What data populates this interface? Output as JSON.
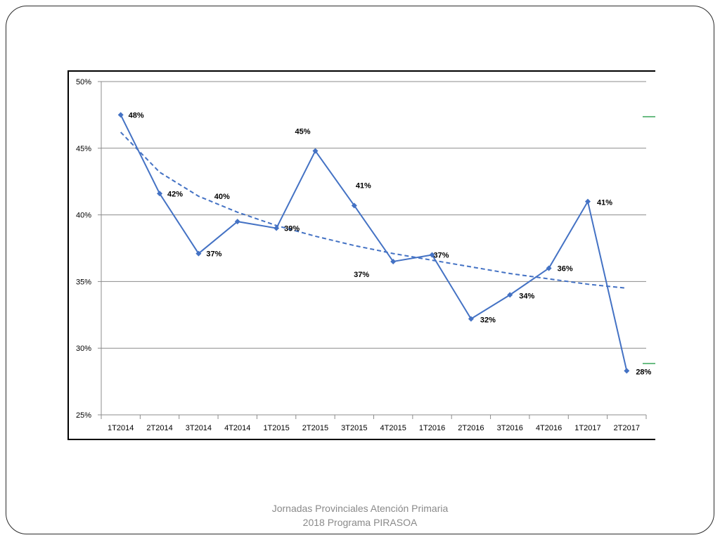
{
  "chart_data": {
    "type": "line",
    "title": "",
    "xlabel": "",
    "ylabel": "",
    "categories": [
      "1T2014",
      "2T2014",
      "3T2014",
      "4T2014",
      "1T2015",
      "2T2015",
      "3T2015",
      "4T2015",
      "1T2016",
      "2T2016",
      "3T2016",
      "4T2016",
      "1T2017",
      "2T2017"
    ],
    "series": [
      {
        "values": [
          47.5,
          41.6,
          37.1,
          39.5,
          39.0,
          44.8,
          40.7,
          36.5,
          37.0,
          32.2,
          34.0,
          36.0,
          41.0,
          28.3
        ],
        "labels": [
          "48%",
          "42%",
          "37%",
          "40%",
          "39%",
          "45%",
          "41%",
          "37%",
          "37%",
          "32%",
          "34%",
          "36%",
          "41%",
          "28%"
        ],
        "color": "#4472c4"
      }
    ],
    "trendline": {
      "type": "logarithmic",
      "style": "dashed",
      "color": "#4472c4",
      "values": [
        46.2,
        43.2,
        41.4,
        40.2,
        39.2,
        38.4,
        37.7,
        37.1,
        36.6,
        36.1,
        35.6,
        35.2,
        34.8,
        34.5
      ]
    },
    "yticks": [
      "25%",
      "30%",
      "35%",
      "40%",
      "45%",
      "50%"
    ],
    "ylim": [
      25,
      50
    ],
    "grid": true,
    "legend": "right (partially cut off)",
    "legend_marker_color": "#3aa55a"
  },
  "footer": {
    "line1": "Jornadas Provinciales Atención Primaria",
    "line2": "2018  Programa PIRASOA"
  }
}
